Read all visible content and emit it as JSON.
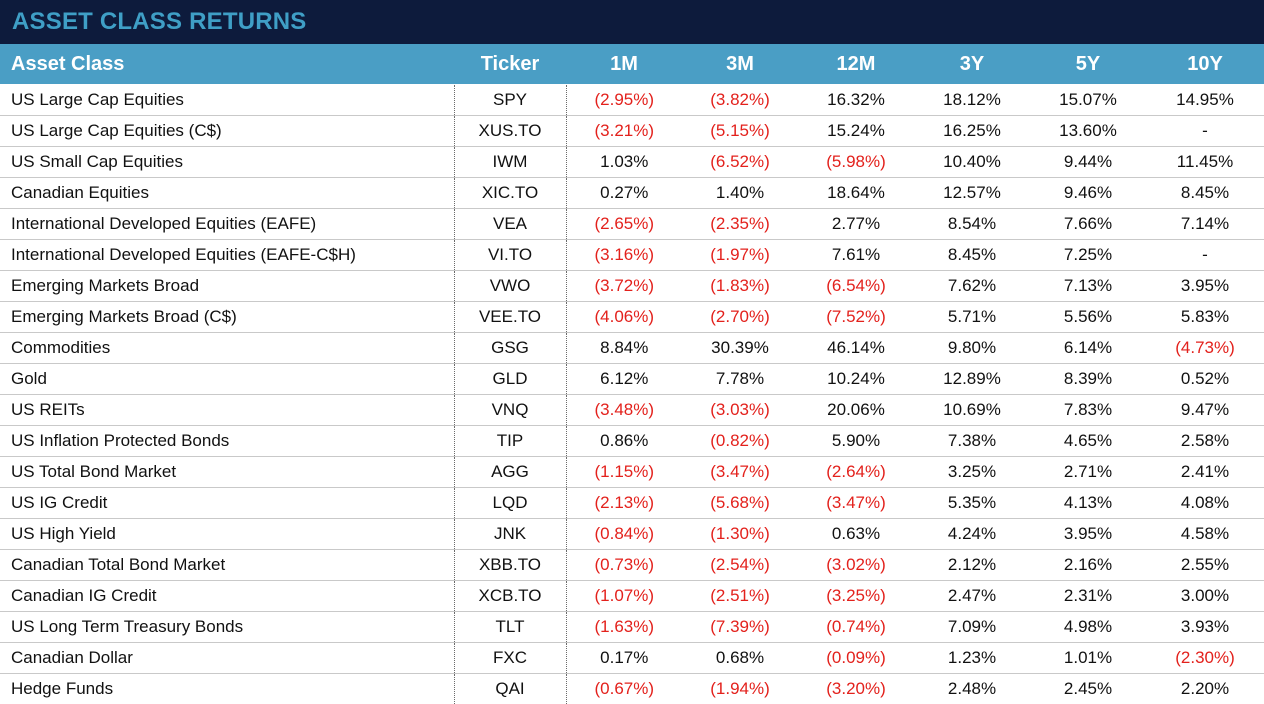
{
  "title": "ASSET CLASS RETURNS",
  "colors": {
    "title_bg": "#0d1b3c",
    "title_text": "#3f9fc6",
    "header_bg": "#4a9ec5",
    "negative": "#e3211c"
  },
  "headers": [
    "Asset Class",
    "Ticker",
    "1M",
    "3M",
    "12M",
    "3Y",
    "5Y",
    "10Y"
  ],
  "rows": [
    {
      "asset": "US Large Cap Equities",
      "ticker": "SPY",
      "values": [
        "(2.95%)",
        "(3.82%)",
        "16.32%",
        "18.12%",
        "15.07%",
        "14.95%"
      ]
    },
    {
      "asset": "US Large Cap Equities (C$)",
      "ticker": "XUS.TO",
      "values": [
        "(3.21%)",
        "(5.15%)",
        "15.24%",
        "16.25%",
        "13.60%",
        "-"
      ]
    },
    {
      "asset": "US Small Cap Equities",
      "ticker": "IWM",
      "values": [
        "1.03%",
        "(6.52%)",
        "(5.98%)",
        "10.40%",
        "9.44%",
        "11.45%"
      ]
    },
    {
      "asset": "Canadian Equities",
      "ticker": "XIC.TO",
      "values": [
        "0.27%",
        "1.40%",
        "18.64%",
        "12.57%",
        "9.46%",
        "8.45%"
      ]
    },
    {
      "asset": "International Developed Equities (EAFE)",
      "ticker": "VEA",
      "values": [
        "(2.65%)",
        "(2.35%)",
        "2.77%",
        "8.54%",
        "7.66%",
        "7.14%"
      ]
    },
    {
      "asset": "International Developed Equities (EAFE-C$H)",
      "ticker": "VI.TO",
      "values": [
        "(3.16%)",
        "(1.97%)",
        "7.61%",
        "8.45%",
        "7.25%",
        "-"
      ]
    },
    {
      "asset": "Emerging Markets Broad",
      "ticker": "VWO",
      "values": [
        "(3.72%)",
        "(1.83%)",
        "(6.54%)",
        "7.62%",
        "7.13%",
        "3.95%"
      ]
    },
    {
      "asset": "Emerging Markets Broad (C$)",
      "ticker": "VEE.TO",
      "values": [
        "(4.06%)",
        "(2.70%)",
        "(7.52%)",
        "5.71%",
        "5.56%",
        "5.83%"
      ]
    },
    {
      "asset": "Commodities",
      "ticker": "GSG",
      "values": [
        "8.84%",
        "30.39%",
        "46.14%",
        "9.80%",
        "6.14%",
        "(4.73%)"
      ]
    },
    {
      "asset": "Gold",
      "ticker": "GLD",
      "values": [
        "6.12%",
        "7.78%",
        "10.24%",
        "12.89%",
        "8.39%",
        "0.52%"
      ]
    },
    {
      "asset": "US REITs",
      "ticker": "VNQ",
      "values": [
        "(3.48%)",
        "(3.03%)",
        "20.06%",
        "10.69%",
        "7.83%",
        "9.47%"
      ]
    },
    {
      "asset": "US Inflation Protected Bonds",
      "ticker": "TIP",
      "values": [
        "0.86%",
        "(0.82%)",
        "5.90%",
        "7.38%",
        "4.65%",
        "2.58%"
      ]
    },
    {
      "asset": "US Total Bond Market",
      "ticker": "AGG",
      "values": [
        "(1.15%)",
        "(3.47%)",
        "(2.64%)",
        "3.25%",
        "2.71%",
        "2.41%"
      ]
    },
    {
      "asset": "US IG Credit",
      "ticker": "LQD",
      "values": [
        "(2.13%)",
        "(5.68%)",
        "(3.47%)",
        "5.35%",
        "4.13%",
        "4.08%"
      ]
    },
    {
      "asset": "US High Yield",
      "ticker": "JNK",
      "values": [
        "(0.84%)",
        "(1.30%)",
        "0.63%",
        "4.24%",
        "3.95%",
        "4.58%"
      ]
    },
    {
      "asset": "Canadian Total Bond Market",
      "ticker": "XBB.TO",
      "values": [
        "(0.73%)",
        "(2.54%)",
        "(3.02%)",
        "2.12%",
        "2.16%",
        "2.55%"
      ]
    },
    {
      "asset": "Canadian IG Credit",
      "ticker": "XCB.TO",
      "values": [
        "(1.07%)",
        "(2.51%)",
        "(3.25%)",
        "2.47%",
        "2.31%",
        "3.00%"
      ]
    },
    {
      "asset": "US Long Term Treasury Bonds",
      "ticker": "TLT",
      "values": [
        "(1.63%)",
        "(7.39%)",
        "(0.74%)",
        "7.09%",
        "4.98%",
        "3.93%"
      ]
    },
    {
      "asset": "Canadian Dollar",
      "ticker": "FXC",
      "values": [
        "0.17%",
        "0.68%",
        "(0.09%)",
        "1.23%",
        "1.01%",
        "(2.30%)"
      ]
    },
    {
      "asset": "Hedge Funds",
      "ticker": "QAI",
      "values": [
        "(0.67%)",
        "(1.94%)",
        "(3.20%)",
        "2.48%",
        "2.45%",
        "2.20%"
      ]
    }
  ]
}
